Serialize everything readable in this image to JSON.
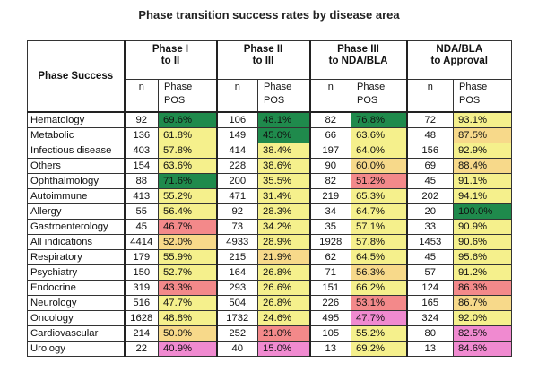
{
  "title": "Phase transition success rates by disease area",
  "chart_data": {
    "type": "table",
    "corner_header": "Phase Success",
    "phases": [
      {
        "label_line1": "Phase I",
        "label_line2": "to II",
        "n_label": "n",
        "pos_label_1": "Phase",
        "pos_label_2": "POS"
      },
      {
        "label_line1": "Phase II",
        "label_line2": "to III",
        "n_label": "n",
        "pos_label_1": "Phase",
        "pos_label_2": "POS"
      },
      {
        "label_line1": "Phase III",
        "label_line2": "to NDA/BLA",
        "n_label": "n",
        "pos_label_1": "Phase",
        "pos_label_2": "POS"
      },
      {
        "label_line1": "NDA/BLA",
        "label_line2": "to Approval",
        "n_label": "n",
        "pos_label_1": "Phase",
        "pos_label_2": "POS"
      }
    ],
    "rows": [
      {
        "area": "Hematology",
        "cells": [
          {
            "n": "92",
            "pos": "69.6%",
            "color": "#1f8a4c"
          },
          {
            "n": "106",
            "pos": "48.1%",
            "color": "#1f8a4c"
          },
          {
            "n": "82",
            "pos": "76.8%",
            "color": "#1f8a4c"
          },
          {
            "n": "72",
            "pos": "93.1%",
            "color": "#f5f08c"
          }
        ]
      },
      {
        "area": "Metabolic",
        "cells": [
          {
            "n": "136",
            "pos": "61.8%",
            "color": "#f5f08c"
          },
          {
            "n": "149",
            "pos": "45.0%",
            "color": "#1f8a4c"
          },
          {
            "n": "66",
            "pos": "63.6%",
            "color": "#f5f08c"
          },
          {
            "n": "48",
            "pos": "87.5%",
            "color": "#f7d98a"
          }
        ]
      },
      {
        "area": "Infectious disease",
        "cells": [
          {
            "n": "403",
            "pos": "57.8%",
            "color": "#f5f08c"
          },
          {
            "n": "414",
            "pos": "38.4%",
            "color": "#f5f08c"
          },
          {
            "n": "197",
            "pos": "64.0%",
            "color": "#f5f08c"
          },
          {
            "n": "156",
            "pos": "92.9%",
            "color": "#f5f08c"
          }
        ]
      },
      {
        "area": "Others",
        "cells": [
          {
            "n": "154",
            "pos": "63.6%",
            "color": "#f5f08c"
          },
          {
            "n": "228",
            "pos": "38.6%",
            "color": "#f5f08c"
          },
          {
            "n": "90",
            "pos": "60.0%",
            "color": "#f7d98a"
          },
          {
            "n": "69",
            "pos": "88.4%",
            "color": "#f7d98a"
          }
        ]
      },
      {
        "area": "Ophthalmology",
        "cells": [
          {
            "n": "88",
            "pos": "71.6%",
            "color": "#1f8a4c"
          },
          {
            "n": "200",
            "pos": "35.5%",
            "color": "#f5f08c"
          },
          {
            "n": "82",
            "pos": "51.2%",
            "color": "#f3898a"
          },
          {
            "n": "45",
            "pos": "91.1%",
            "color": "#f5f08c"
          }
        ]
      },
      {
        "area": "Autoimmune",
        "cells": [
          {
            "n": "413",
            "pos": "55.2%",
            "color": "#f5f08c"
          },
          {
            "n": "471",
            "pos": "31.4%",
            "color": "#f5f08c"
          },
          {
            "n": "219",
            "pos": "65.3%",
            "color": "#f5f08c"
          },
          {
            "n": "202",
            "pos": "94.1%",
            "color": "#f5f08c"
          }
        ]
      },
      {
        "area": "Allergy",
        "cells": [
          {
            "n": "55",
            "pos": "56.4%",
            "color": "#f5f08c"
          },
          {
            "n": "92",
            "pos": "28.3%",
            "color": "#f5f08c"
          },
          {
            "n": "34",
            "pos": "64.7%",
            "color": "#f5f08c"
          },
          {
            "n": "20",
            "pos": "100.0%",
            "color": "#1f8a4c"
          }
        ]
      },
      {
        "area": "Gastroenterology",
        "cells": [
          {
            "n": "45",
            "pos": "46.7%",
            "color": "#f3898a"
          },
          {
            "n": "73",
            "pos": "34.2%",
            "color": "#f5f08c"
          },
          {
            "n": "35",
            "pos": "57.1%",
            "color": "#f5f08c"
          },
          {
            "n": "33",
            "pos": "90.9%",
            "color": "#f5f08c"
          }
        ]
      },
      {
        "area": "All indications",
        "cells": [
          {
            "n": "4414",
            "pos": "52.0%",
            "color": "#f7d98a"
          },
          {
            "n": "4933",
            "pos": "28.9%",
            "color": "#f5f08c"
          },
          {
            "n": "1928",
            "pos": "57.8%",
            "color": "#f5f08c"
          },
          {
            "n": "1453",
            "pos": "90.6%",
            "color": "#f5f08c"
          }
        ]
      },
      {
        "area": "Respiratory",
        "cells": [
          {
            "n": "179",
            "pos": "55.9%",
            "color": "#f5f08c"
          },
          {
            "n": "215",
            "pos": "21.9%",
            "color": "#f7d98a"
          },
          {
            "n": "62",
            "pos": "64.5%",
            "color": "#f5f08c"
          },
          {
            "n": "45",
            "pos": "95.6%",
            "color": "#f5f08c"
          }
        ]
      },
      {
        "area": "Psychiatry",
        "cells": [
          {
            "n": "150",
            "pos": "52.7%",
            "color": "#f5f08c"
          },
          {
            "n": "164",
            "pos": "26.8%",
            "color": "#f5f08c"
          },
          {
            "n": "71",
            "pos": "56.3%",
            "color": "#f7d98a"
          },
          {
            "n": "57",
            "pos": "91.2%",
            "color": "#f5f08c"
          }
        ]
      },
      {
        "area": "Endocrine",
        "cells": [
          {
            "n": "319",
            "pos": "43.3%",
            "color": "#f3898a"
          },
          {
            "n": "293",
            "pos": "26.6%",
            "color": "#f5f08c"
          },
          {
            "n": "151",
            "pos": "66.2%",
            "color": "#f5f08c"
          },
          {
            "n": "124",
            "pos": "86.3%",
            "color": "#f3898a"
          }
        ]
      },
      {
        "area": "Neurology",
        "cells": [
          {
            "n": "516",
            "pos": "47.7%",
            "color": "#f5f08c"
          },
          {
            "n": "504",
            "pos": "26.8%",
            "color": "#f5f08c"
          },
          {
            "n": "226",
            "pos": "53.1%",
            "color": "#f3898a"
          },
          {
            "n": "165",
            "pos": "86.7%",
            "color": "#f7d98a"
          }
        ]
      },
      {
        "area": "Oncology",
        "cells": [
          {
            "n": "1628",
            "pos": "48.8%",
            "color": "#f5f08c"
          },
          {
            "n": "1732",
            "pos": "24.6%",
            "color": "#f5f08c"
          },
          {
            "n": "495",
            "pos": "47.7%",
            "color": "#f08ad0"
          },
          {
            "n": "324",
            "pos": "92.0%",
            "color": "#f5f08c"
          }
        ]
      },
      {
        "area": "Cardiovascular",
        "cells": [
          {
            "n": "214",
            "pos": "50.0%",
            "color": "#f7d98a"
          },
          {
            "n": "252",
            "pos": "21.0%",
            "color": "#f3898a"
          },
          {
            "n": "105",
            "pos": "55.2%",
            "color": "#f5f08c"
          },
          {
            "n": "80",
            "pos": "82.5%",
            "color": "#f08ad0"
          }
        ]
      },
      {
        "area": "Urology",
        "cells": [
          {
            "n": "22",
            "pos": "40.9%",
            "color": "#f08ad0"
          },
          {
            "n": "40",
            "pos": "15.0%",
            "color": "#f08ad0"
          },
          {
            "n": "13",
            "pos": "69.2%",
            "color": "#f5f08c"
          },
          {
            "n": "13",
            "pos": "84.6%",
            "color": "#f08ad0"
          }
        ]
      }
    ]
  }
}
